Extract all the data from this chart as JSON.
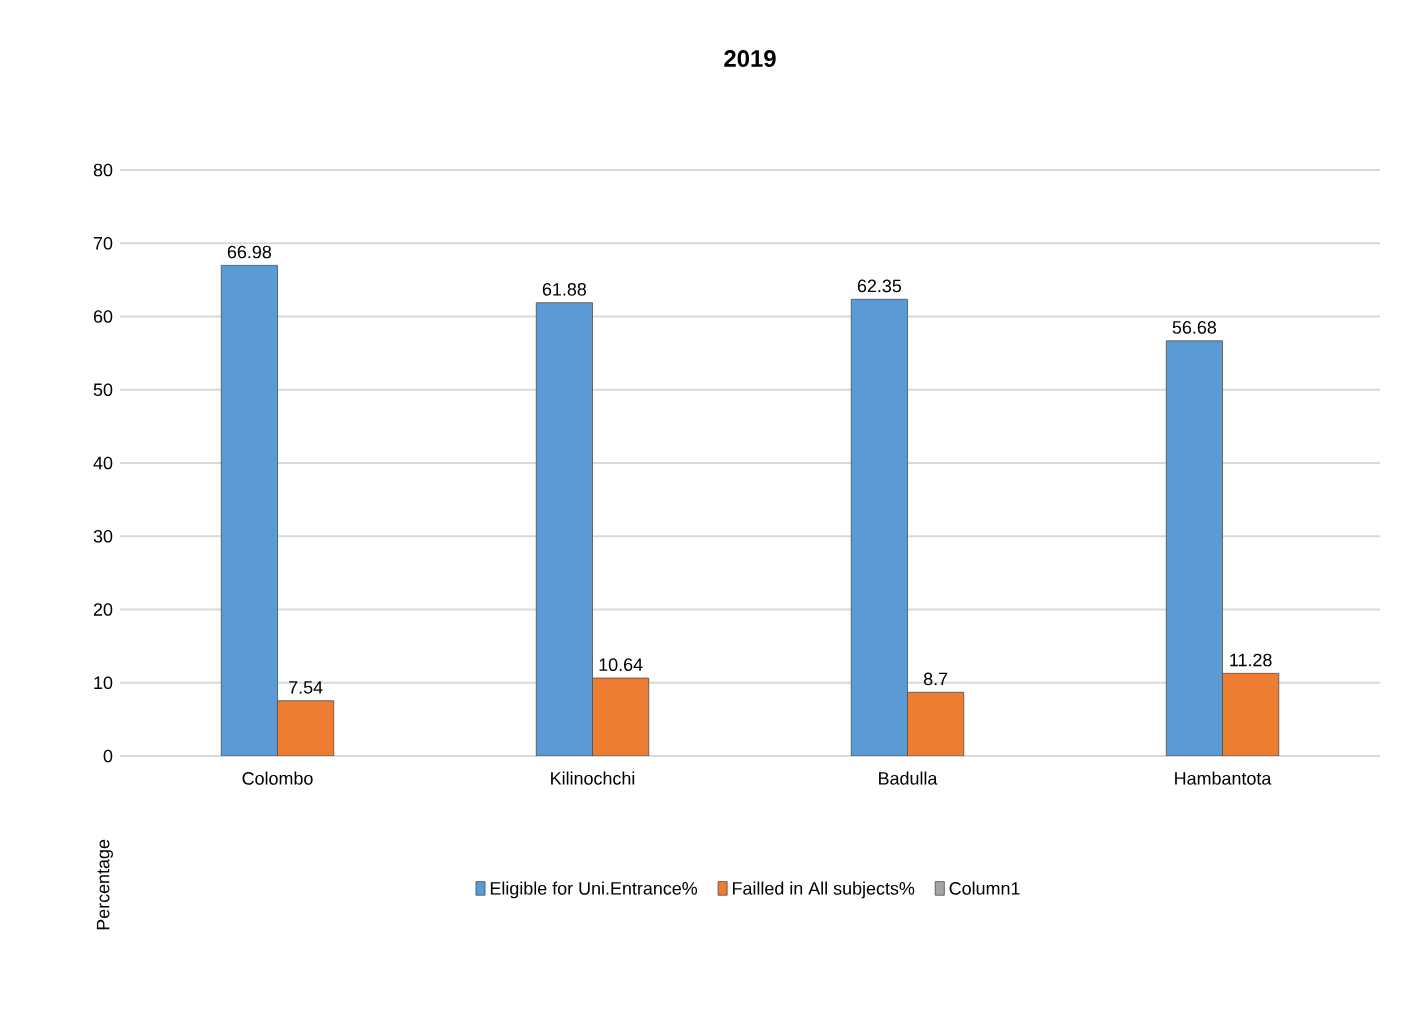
{
  "chart_data": {
    "type": "bar",
    "title": "2019",
    "ylabel": "Percentage",
    "categories": [
      "Colombo",
      "Kilinochchi",
      "Badulla",
      "Hambantota"
    ],
    "series": [
      {
        "name": "Eligible for Uni.Entrance%",
        "color": "#5b9bd5",
        "values": [
          66.98,
          61.88,
          62.35,
          56.68
        ]
      },
      {
        "name": "Failled in All subjects%",
        "color": "#ed7d31",
        "values": [
          7.54,
          10.64,
          8.7,
          11.28
        ]
      },
      {
        "name": "Column1",
        "color": "#a5a5a5",
        "values": [
          null,
          null,
          null,
          null
        ]
      }
    ],
    "ylim": [
      0,
      80
    ],
    "yticks": [
      0,
      10,
      20,
      30,
      40,
      50,
      60,
      70,
      80
    ],
    "grid": "y",
    "legend": "bottom",
    "data_labels": true
  }
}
